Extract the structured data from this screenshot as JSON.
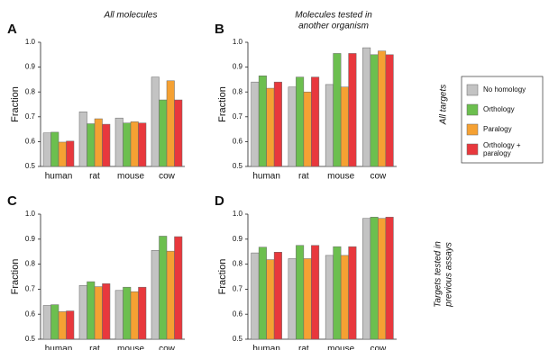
{
  "chart_data": [
    {
      "type": "bar",
      "panel": "A",
      "title": [
        "All molecules"
      ],
      "ylabel": "Fraction",
      "categories": [
        "human",
        "rat",
        "mouse",
        "cow"
      ],
      "ylim": [
        0.5,
        1
      ],
      "yticks": [
        0.5,
        0.6,
        0.7,
        0.8,
        0.9,
        {
          "value": 1,
          "label": "1.0"
        }
      ],
      "series": [
        {
          "name": "No homology",
          "color": "#c3c3c3",
          "values": [
            0.635,
            0.72,
            0.695,
            0.86
          ]
        },
        {
          "name": "Orthology",
          "color": "#6cbf4f",
          "values": [
            0.638,
            0.672,
            0.675,
            0.768
          ]
        },
        {
          "name": "Paralogy",
          "color": "#f5a133",
          "values": [
            0.598,
            0.692,
            0.68,
            0.845
          ]
        },
        {
          "name": "Orthology + paralogy",
          "color": "#e8383d",
          "values": [
            0.602,
            0.67,
            0.675,
            0.768
          ]
        }
      ]
    },
    {
      "type": "bar",
      "panel": "B",
      "title": [
        "Molecules tested in",
        "another organism"
      ],
      "ylabel": "Fraction",
      "categories": [
        "human",
        "rat",
        "mouse",
        "cow"
      ],
      "ylim": [
        0.5,
        1
      ],
      "yticks": [
        0.5,
        0.6,
        0.7,
        0.8,
        0.9,
        {
          "value": 1,
          "label": "1.0"
        }
      ],
      "series": [
        {
          "name": "No homology",
          "color": "#c3c3c3",
          "values": [
            0.84,
            0.82,
            0.83,
            0.978
          ]
        },
        {
          "name": "Orthology",
          "color": "#6cbf4f",
          "values": [
            0.865,
            0.86,
            0.955,
            0.95
          ]
        },
        {
          "name": "Paralogy",
          "color": "#f5a133",
          "values": [
            0.815,
            0.8,
            0.82,
            0.965
          ]
        },
        {
          "name": "Orthology + paralogy",
          "color": "#e8383d",
          "values": [
            0.84,
            0.86,
            0.955,
            0.95
          ]
        }
      ]
    },
    {
      "type": "bar",
      "panel": "C",
      "ylabel": "Fraction",
      "categories": [
        "human",
        "rat",
        "mouse",
        "cow"
      ],
      "ylim": [
        0.5,
        1
      ],
      "yticks": [
        0.5,
        0.6,
        0.7,
        0.8,
        0.9,
        {
          "value": 1,
          "label": "1.0"
        }
      ],
      "series": [
        {
          "name": "No homology",
          "color": "#c3c3c3",
          "values": [
            0.635,
            0.715,
            0.695,
            0.855
          ]
        },
        {
          "name": "Orthology",
          "color": "#6cbf4f",
          "values": [
            0.638,
            0.73,
            0.708,
            0.912
          ]
        },
        {
          "name": "Paralogy",
          "color": "#f5a133",
          "values": [
            0.61,
            0.71,
            0.69,
            0.852
          ]
        },
        {
          "name": "Orthology + paralogy",
          "color": "#e8383d",
          "values": [
            0.613,
            0.722,
            0.708,
            0.91
          ]
        }
      ]
    },
    {
      "type": "bar",
      "panel": "D",
      "ylabel": "Fraction",
      "categories": [
        "human",
        "rat",
        "mouse",
        "cow"
      ],
      "ylim": [
        0.5,
        1
      ],
      "yticks": [
        0.5,
        0.6,
        0.7,
        0.8,
        0.9,
        {
          "value": 1,
          "label": "1.0"
        }
      ],
      "series": [
        {
          "name": "No homology",
          "color": "#c3c3c3",
          "values": [
            0.845,
            0.822,
            0.835,
            0.983
          ]
        },
        {
          "name": "Orthology",
          "color": "#6cbf4f",
          "values": [
            0.868,
            0.875,
            0.87,
            0.988
          ]
        },
        {
          "name": "Paralogy",
          "color": "#f5a133",
          "values": [
            0.818,
            0.822,
            0.835,
            0.983
          ]
        },
        {
          "name": "Orthology + paralogy",
          "color": "#e8383d",
          "values": [
            0.848,
            0.875,
            0.87,
            0.988
          ]
        }
      ]
    }
  ],
  "row_labels": [
    [
      "All targets"
    ],
    [
      "Targets tested in",
      "previous assays"
    ]
  ]
}
